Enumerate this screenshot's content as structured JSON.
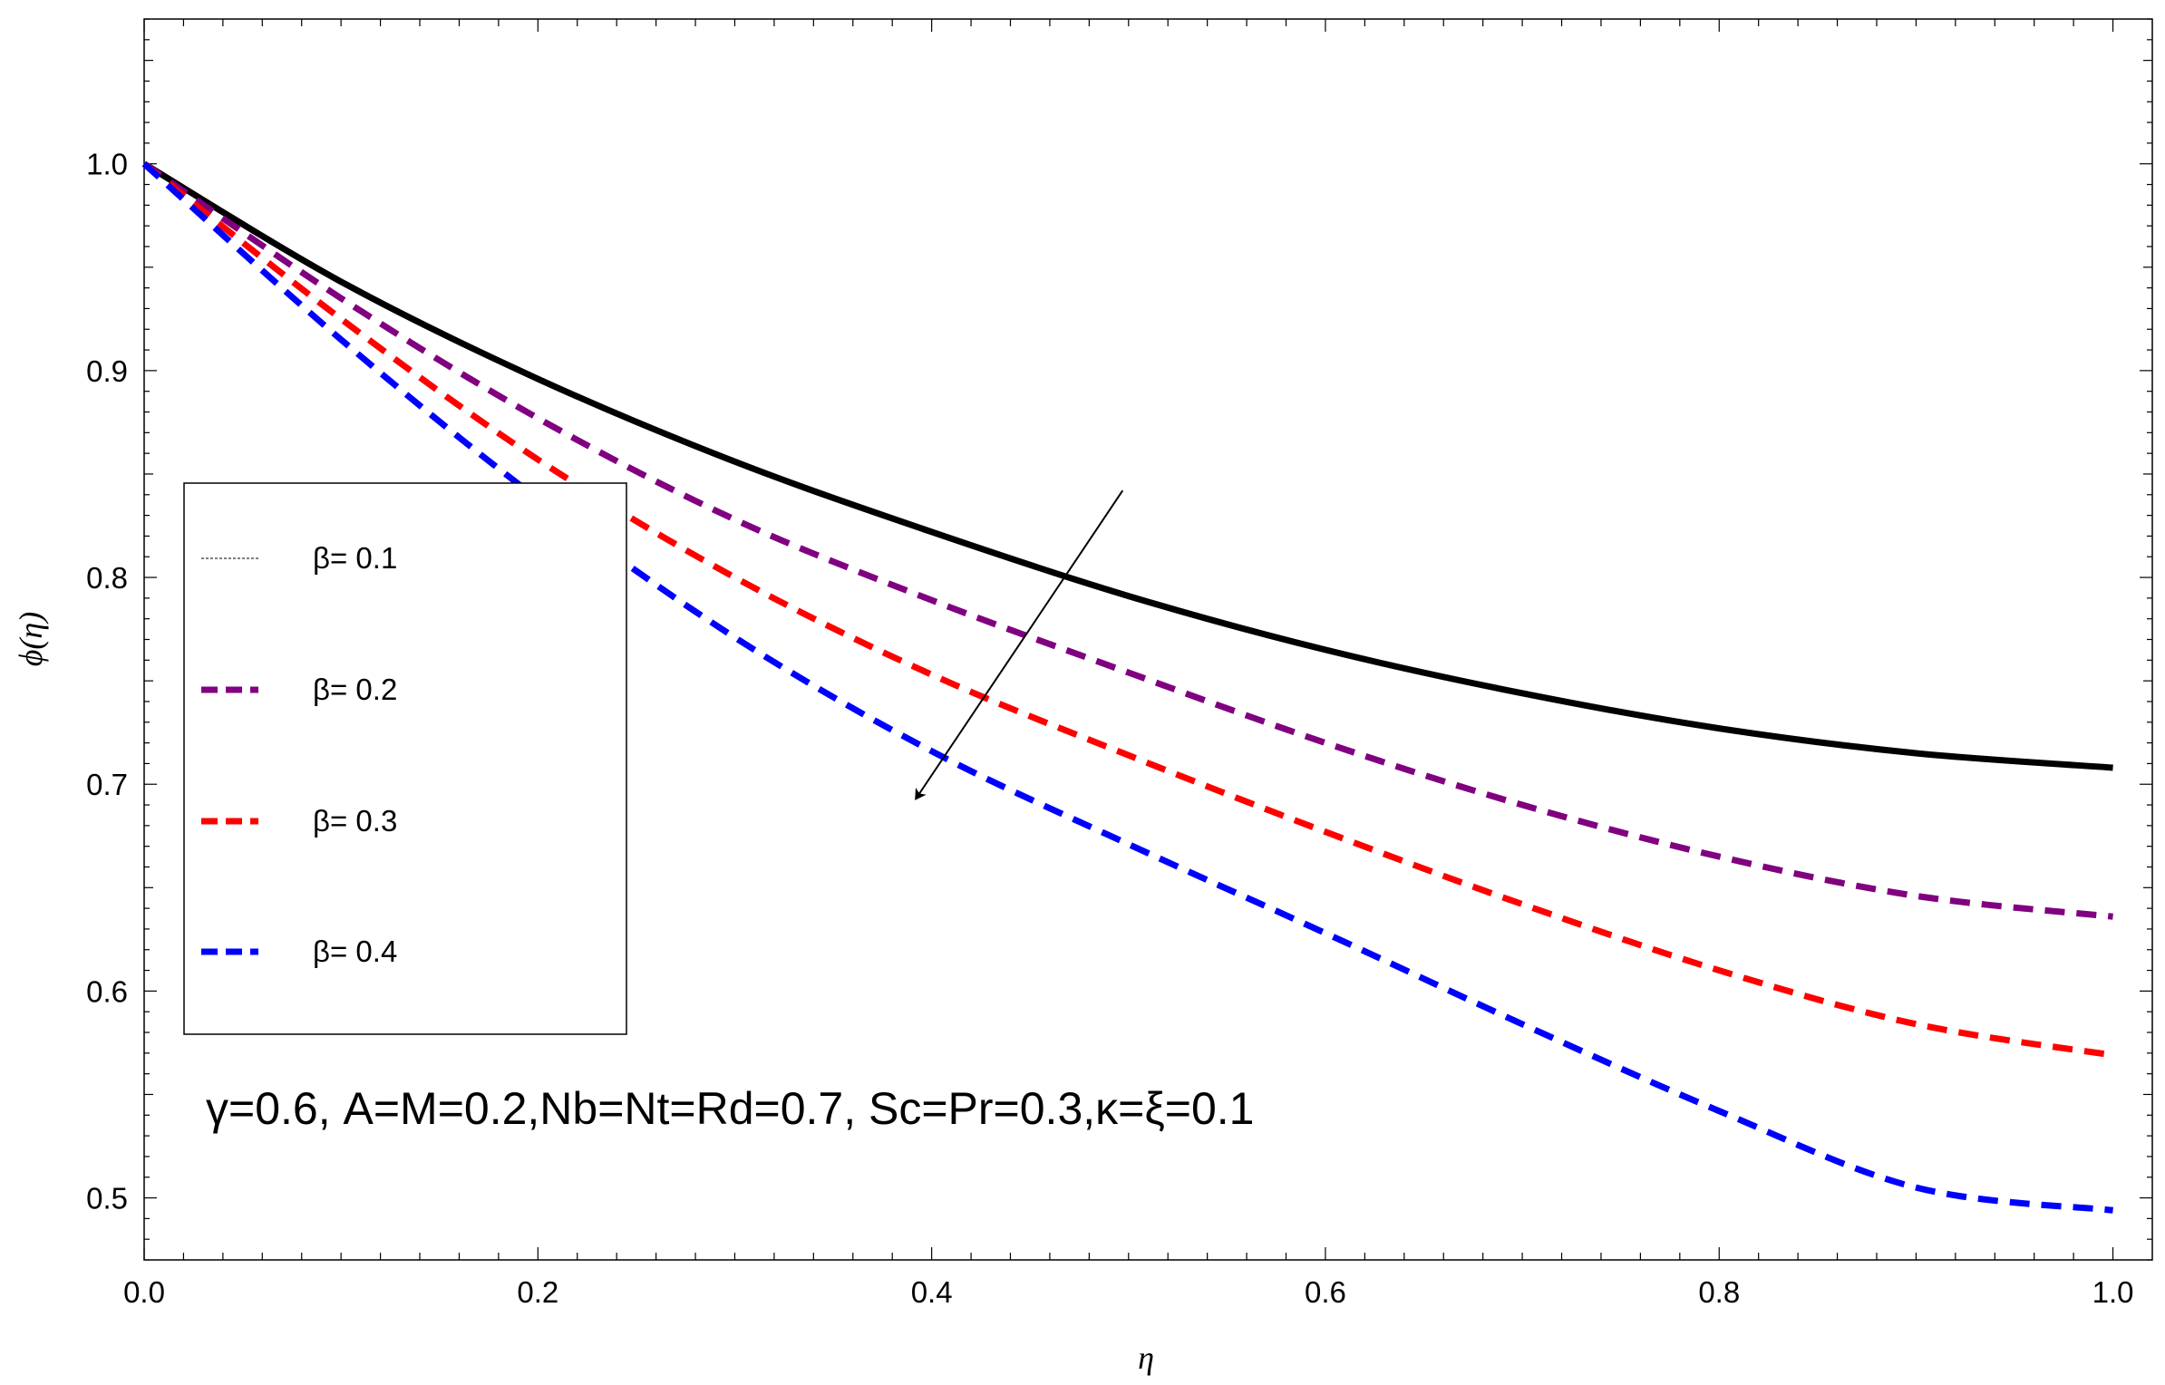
{
  "chart_data": {
    "type": "line",
    "xlabel": "η",
    "ylabel": "ϕ(η)",
    "xlim": [
      0,
      1.02
    ],
    "ylim": [
      0.47,
      1.07
    ],
    "xticks": [
      "0.0",
      "0.2",
      "0.4",
      "0.6",
      "0.8",
      "1.0"
    ],
    "yticks": [
      "0.5",
      "0.6",
      "0.7",
      "0.8",
      "0.9",
      "1.0"
    ],
    "legend_placement": "left",
    "annotation": "γ=0.6, A=M=0.2,Nb=Nt=Rd=0.7, Sc=Pr=0.3,κ=ξ=0.1",
    "arrow": {
      "from": [
        0.497,
        0.842
      ],
      "to": [
        0.392,
        0.693
      ],
      "meaning": "increasing β"
    },
    "x": [
      0.0,
      0.1,
      0.2,
      0.3,
      0.4,
      0.5,
      0.6,
      0.7,
      0.8,
      0.9,
      1.0
    ],
    "series": [
      {
        "name": "β= 0.1",
        "legend_style": "dotted",
        "plot_style": "solid",
        "color": "#000000",
        "values": [
          1.0,
          0.943,
          0.896,
          0.856,
          0.822,
          0.791,
          0.765,
          0.744,
          0.727,
          0.715,
          0.708
        ]
      },
      {
        "name": "β= 0.2",
        "legend_style": "dashed",
        "plot_style": "dashed",
        "color": "#800080",
        "values": [
          1.0,
          0.935,
          0.877,
          0.828,
          0.789,
          0.754,
          0.72,
          0.69,
          0.665,
          0.646,
          0.636
        ]
      },
      {
        "name": "β= 0.3",
        "legend_style": "dashed",
        "plot_style": "dashed",
        "color": "#ff0000",
        "values": [
          1.0,
          0.925,
          0.857,
          0.8,
          0.753,
          0.714,
          0.677,
          0.642,
          0.61,
          0.584,
          0.569
        ]
      },
      {
        "name": "β= 0.4",
        "legend_style": "dashed",
        "plot_style": "dashed",
        "color": "#0000ff",
        "values": [
          1.0,
          0.915,
          0.838,
          0.771,
          0.716,
          0.671,
          0.628,
          0.584,
          0.542,
          0.505,
          0.494
        ]
      }
    ]
  }
}
